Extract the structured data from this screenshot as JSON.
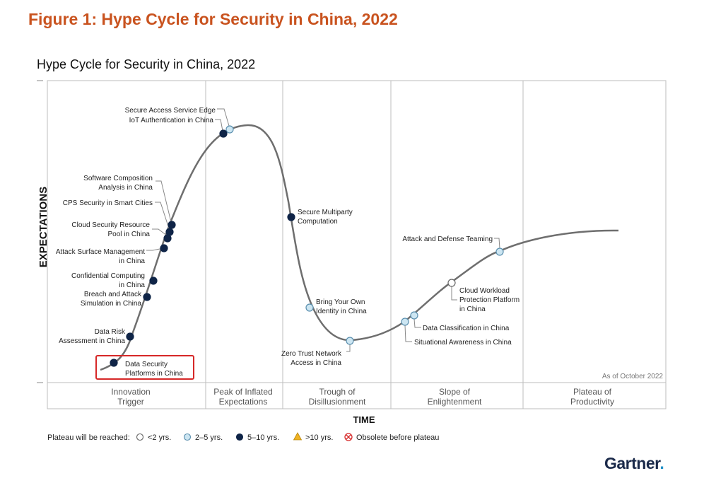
{
  "figure_title": "Figure 1: Hype Cycle for Security in China, 2022",
  "chart_title": "Hype Cycle for Security in China, 2022",
  "y_axis_label": "EXPECTATIONS",
  "x_axis_label": "TIME",
  "as_of_note": "As of October 2022",
  "phases": [
    {
      "line1": "Innovation",
      "line2": "Trigger"
    },
    {
      "line1": "Peak of Inflated",
      "line2": "Expectations"
    },
    {
      "line1": "Trough of",
      "line2": "Disillusionment"
    },
    {
      "line1": "Slope of",
      "line2": "Enlightenment"
    },
    {
      "line1": "Plateau of",
      "line2": "Productivity"
    }
  ],
  "legend": {
    "heading": "Plateau will be reached:",
    "items": [
      {
        "label": "<2 yrs.",
        "marker": "circle-white",
        "color": "#ffffff"
      },
      {
        "label": "2–5 yrs.",
        "marker": "circle-light-blue",
        "color": "#cde6f2"
      },
      {
        "label": "5–10 yrs.",
        "marker": "circle-navy",
        "color": "#0f2447"
      },
      {
        "label": ">10 yrs.",
        "marker": "triangle-amber",
        "color": "#f0b323"
      },
      {
        "label": "Obsolete before plateau",
        "marker": "circle-cross-red",
        "color": "#d62828"
      }
    ]
  },
  "technologies": [
    {
      "lines": [
        "Secure Access Service Edge"
      ],
      "category": "2–5 yrs.",
      "phase": "Peak of Inflated Expectations"
    },
    {
      "lines": [
        "IoT Authentication in China"
      ],
      "category": "5–10 yrs.",
      "phase": "Peak of Inflated Expectations"
    },
    {
      "lines": [
        "Software Composition",
        "Analysis in China"
      ],
      "category": "5–10 yrs.",
      "phase": "Innovation Trigger"
    },
    {
      "lines": [
        "CPS Security in Smart Cities"
      ],
      "category": "5–10 yrs.",
      "phase": "Innovation Trigger"
    },
    {
      "lines": [
        "Cloud Security Resource",
        "Pool in China"
      ],
      "category": "5–10 yrs.",
      "phase": "Innovation Trigger"
    },
    {
      "lines": [
        "Attack Surface Management",
        "in China"
      ],
      "category": "5–10 yrs.",
      "phase": "Innovation Trigger"
    },
    {
      "lines": [
        "Confidential Computing",
        "in China"
      ],
      "category": "5–10 yrs.",
      "phase": "Innovation Trigger"
    },
    {
      "lines": [
        "Breach and Attack",
        "Simulation in China"
      ],
      "category": "5–10 yrs.",
      "phase": "Innovation Trigger"
    },
    {
      "lines": [
        "Data Risk",
        "Assessment in China"
      ],
      "category": "5–10 yrs.",
      "phase": "Innovation Trigger"
    },
    {
      "lines": [
        "Data Security",
        "Platforms in China"
      ],
      "category": "5–10 yrs.",
      "phase": "Innovation Trigger",
      "highlighted": true
    },
    {
      "lines": [
        "Secure Multiparty",
        "Computation"
      ],
      "category": "5–10 yrs.",
      "phase": "Trough of Disillusionment"
    },
    {
      "lines": [
        "Bring Your Own",
        "Identity in China"
      ],
      "category": "2–5 yrs.",
      "phase": "Trough of Disillusionment"
    },
    {
      "lines": [
        "Zero Trust Network",
        "Access in China"
      ],
      "category": "2–5 yrs.",
      "phase": "Trough of Disillusionment"
    },
    {
      "lines": [
        "Attack and Defense Teaming"
      ],
      "category": "2–5 yrs.",
      "phase": "Slope of Enlightenment"
    },
    {
      "lines": [
        "Cloud Workload",
        "Protection Platform",
        "in China"
      ],
      "category": "<2 yrs.",
      "phase": "Slope of Enlightenment"
    },
    {
      "lines": [
        "Data Classification in China"
      ],
      "category": "2–5 yrs.",
      "phase": "Slope of Enlightenment"
    },
    {
      "lines": [
        "Situational Awareness in China"
      ],
      "category": "2–5 yrs.",
      "phase": "Slope of Enlightenment"
    }
  ],
  "highlight_color": "#d62828",
  "title_color": "#c9531f",
  "curve_color": "#666666",
  "brand": {
    "name": "Gartner",
    "suffix": "."
  }
}
